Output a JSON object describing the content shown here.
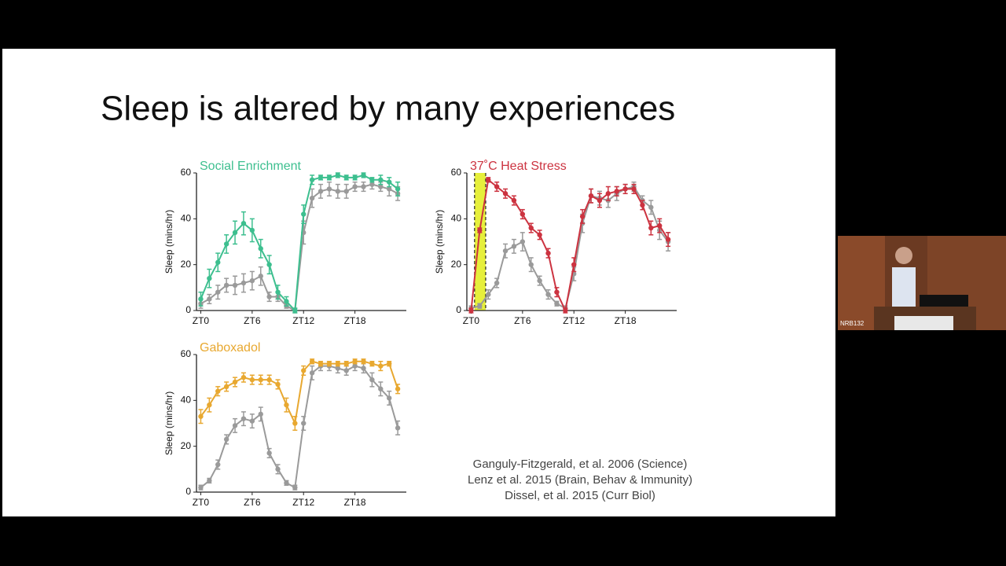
{
  "slide": {
    "title": "Sleep is altered by many experiences",
    "references": [
      "Ganguly-Fitzgerald, et al. 2006 (Science)",
      "Lenz et al. 2015 (Brain, Behav & Immunity)",
      "Dissel, et al. 2015 (Curr Biol)"
    ]
  },
  "room_label": "NRB132",
  "chart_data": [
    {
      "type": "line",
      "title": "Social Enrichment",
      "ylabel": "Sleep (mins/hr)",
      "x": [
        0,
        1,
        2,
        3,
        4,
        5,
        6,
        7,
        8,
        9,
        10,
        11,
        12,
        13,
        14,
        15,
        16,
        17,
        18,
        19,
        20,
        21,
        22,
        23
      ],
      "xlim": [
        -0.5,
        24
      ],
      "ylim": [
        0,
        60
      ],
      "yticks": [
        0,
        20,
        40,
        60
      ],
      "xticks": [
        {
          "value": 0,
          "label": "ZT0"
        },
        {
          "value": 6,
          "label": "ZT6"
        },
        {
          "value": 12,
          "label": "ZT12"
        },
        {
          "value": 18,
          "label": "ZT18"
        }
      ],
      "series": [
        {
          "color": "#3dbf8f",
          "values": [
            5,
            14,
            21,
            29,
            34,
            38,
            35,
            27,
            20,
            8,
            4,
            0,
            42,
            57,
            58,
            58,
            59,
            58,
            58,
            59,
            57,
            57,
            56,
            53
          ],
          "errors": [
            3,
            4,
            4,
            4,
            5,
            5,
            5,
            4,
            4,
            3,
            2,
            1,
            4,
            2,
            1,
            1,
            1,
            1,
            1,
            1,
            1,
            2,
            2,
            3
          ]
        },
        {
          "color": "#9a9a9a",
          "values": [
            3,
            5,
            8,
            11,
            11,
            12,
            13,
            15,
            6,
            6,
            2,
            0,
            34,
            49,
            52,
            53,
            52,
            52,
            54,
            54,
            55,
            54,
            53,
            51
          ],
          "errors": [
            2,
            2,
            3,
            3,
            4,
            4,
            4,
            4,
            2,
            2,
            1,
            1,
            5,
            4,
            3,
            3,
            3,
            3,
            2,
            2,
            2,
            2,
            3,
            3
          ]
        }
      ]
    },
    {
      "type": "line",
      "title": "37˚C Heat Stress",
      "ylabel": "Sleep (mins/hr)",
      "x": [
        0,
        1,
        2,
        3,
        4,
        5,
        6,
        7,
        8,
        9,
        10,
        11,
        12,
        13,
        14,
        15,
        16,
        17,
        18,
        19,
        20,
        21,
        22,
        23
      ],
      "xlim": [
        -0.5,
        24
      ],
      "ylim": [
        0,
        60
      ],
      "yticks": [
        0,
        20,
        40,
        60
      ],
      "xticks": [
        {
          "value": 0,
          "label": "ZT0"
        },
        {
          "value": 6,
          "label": "ZT6"
        },
        {
          "value": 12,
          "label": "ZT12"
        },
        {
          "value": 18,
          "label": "ZT18"
        }
      ],
      "shade": {
        "x": [
          0.4,
          1.7
        ],
        "color": "#e6ef3c"
      },
      "series": [
        {
          "color": "#cc3340",
          "values": [
            0,
            35,
            57,
            54,
            51,
            48,
            42,
            36,
            33,
            25,
            8,
            0,
            20,
            41,
            50,
            48,
            51,
            52,
            53,
            53,
            46,
            36,
            37,
            31
          ],
          "errors": [
            1,
            1,
            1,
            2,
            2,
            2,
            2,
            2,
            2,
            2,
            2,
            1,
            3,
            3,
            3,
            3,
            3,
            2,
            2,
            2,
            2,
            3,
            3,
            3
          ]
        },
        {
          "color": "#9a9a9a",
          "values": [
            1,
            2,
            7,
            12,
            26,
            28,
            30,
            20,
            13,
            7,
            3,
            1,
            16,
            38,
            50,
            49,
            48,
            51,
            53,
            54,
            48,
            45,
            35,
            30
          ],
          "errors": [
            1,
            1,
            2,
            2,
            3,
            3,
            4,
            3,
            2,
            2,
            1,
            1,
            3,
            4,
            3,
            3,
            3,
            3,
            2,
            2,
            2,
            3,
            4,
            4
          ]
        }
      ]
    },
    {
      "type": "line",
      "title": "Gaboxadol",
      "ylabel": "Sleep (mins/hr)",
      "x": [
        0,
        1,
        2,
        3,
        4,
        5,
        6,
        7,
        8,
        9,
        10,
        11,
        12,
        13,
        14,
        15,
        16,
        17,
        18,
        19,
        20,
        21,
        22,
        23
      ],
      "xlim": [
        -0.5,
        24
      ],
      "ylim": [
        0,
        60
      ],
      "yticks": [
        0,
        20,
        40,
        60
      ],
      "xticks": [
        {
          "value": 0,
          "label": "ZT0"
        },
        {
          "value": 6,
          "label": "ZT6"
        },
        {
          "value": 12,
          "label": "ZT12"
        },
        {
          "value": 18,
          "label": "ZT18"
        }
      ],
      "series": [
        {
          "color": "#e8a830",
          "values": [
            33,
            38,
            44,
            46,
            48,
            50,
            49,
            49,
            49,
            47,
            38,
            30,
            53,
            57,
            56,
            56,
            56,
            56,
            57,
            57,
            56,
            55,
            56,
            45
          ],
          "errors": [
            3,
            3,
            2,
            2,
            2,
            2,
            2,
            2,
            2,
            2,
            3,
            3,
            2,
            1,
            1,
            1,
            1,
            1,
            1,
            1,
            1,
            2,
            1,
            2
          ]
        },
        {
          "color": "#9a9a9a",
          "values": [
            2,
            5,
            12,
            23,
            29,
            32,
            31,
            34,
            17,
            10,
            4,
            2,
            30,
            52,
            55,
            55,
            54,
            53,
            55,
            54,
            49,
            45,
            41,
            28
          ],
          "errors": [
            1,
            1,
            2,
            2,
            3,
            3,
            3,
            3,
            2,
            2,
            1,
            1,
            3,
            3,
            2,
            2,
            2,
            2,
            2,
            2,
            3,
            3,
            3,
            3
          ]
        }
      ]
    }
  ]
}
